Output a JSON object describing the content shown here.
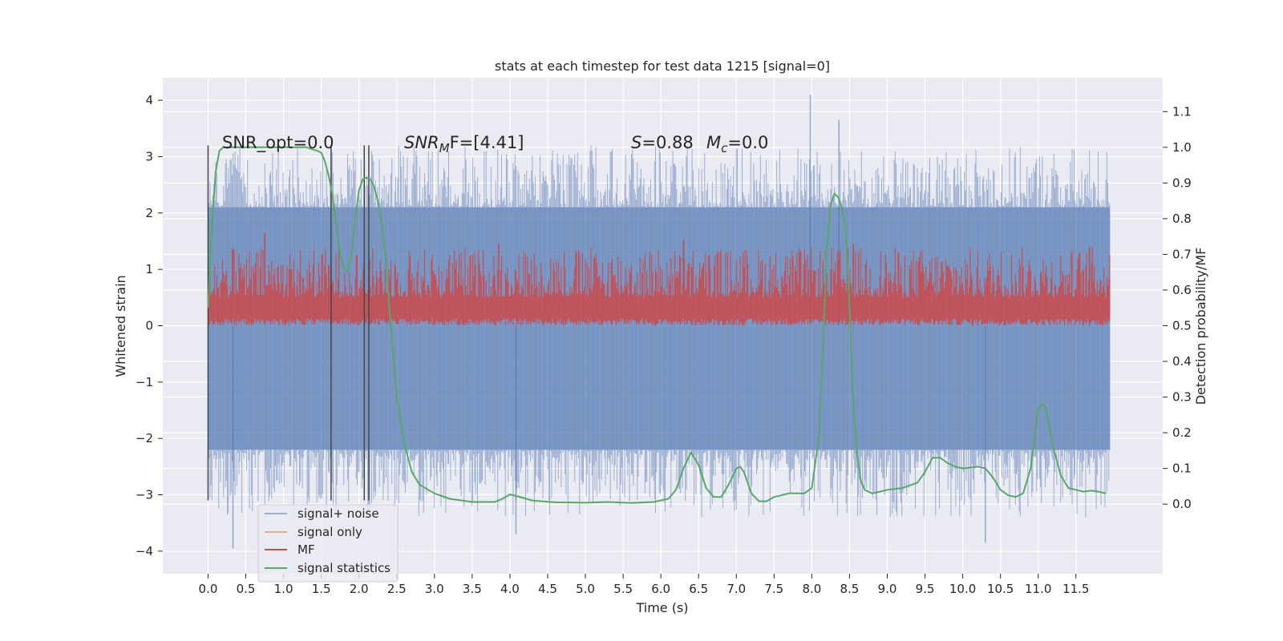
{
  "chart_data": {
    "type": "line",
    "title": "stats at each timestep for test data 1215 [signal=0]",
    "xlabel": "Time (s)",
    "ylabel": "Whitened strain",
    "y2label": "Detection probability/MF",
    "xlim": [
      -0.6,
      12.65
    ],
    "ylim": [
      -4.4,
      4.4
    ],
    "y2lim": [
      -0.195,
      1.195
    ],
    "xticks": [
      0.0,
      0.5,
      1.0,
      1.5,
      2.0,
      2.5,
      3.0,
      3.5,
      4.0,
      4.5,
      5.0,
      5.5,
      6.0,
      6.5,
      7.0,
      7.5,
      8.0,
      8.5,
      9.0,
      9.5,
      10.0,
      10.5,
      11.0,
      11.5
    ],
    "xtick_labels": [
      "0.0",
      "0.5",
      "1.0",
      "1.5",
      "2.0",
      "2.5",
      "3.0",
      "3.5",
      "4.0",
      "4.5",
      "5.0",
      "5.5",
      "6.0",
      "6.5",
      "7.0",
      "7.5",
      "8.0",
      "8.5",
      "9.0",
      "9.5",
      "10.0",
      "10.5",
      "11.0",
      "11.5"
    ],
    "yticks": [
      4,
      3,
      2,
      1,
      0,
      -1,
      -2,
      -3,
      -4
    ],
    "ytick_labels": [
      "4",
      "3",
      "2",
      "1",
      "0",
      "−1",
      "−2",
      "−3",
      "−4"
    ],
    "y2ticks": [
      1.1,
      1.0,
      0.9,
      0.8,
      0.7,
      0.6,
      0.5,
      0.4,
      0.3,
      0.2,
      0.1,
      0.0
    ],
    "y2tick_labels": [
      "1.1",
      "1.0",
      "0.9",
      "0.8",
      "0.7",
      "0.6",
      "0.5",
      "0.4",
      "0.3",
      "0.2",
      "0.1",
      "0.0"
    ],
    "grid": true,
    "legend_position": "lower-left",
    "annotations": {
      "snr_opt": "SNR_opt=0.0",
      "snr_mf_italic": "SNR",
      "snr_mf_sub": "M",
      "snr_mf_rest": "F=[4.41]",
      "s_italic": "S",
      "s_rest": "=0.88",
      "mc_italic": "M",
      "mc_sub": "c",
      "mc_rest": "=0.0"
    },
    "vlines": [
      0.0,
      1.63,
      2.07,
      2.13
    ],
    "series": [
      {
        "name": "signal+ noise",
        "color": "#4c72b0",
        "x_range": [
          0.0,
          11.95
        ],
        "envelope_pos": [
          2.1,
          3.2
        ],
        "envelope_neg": [
          -2.2,
          -3.4
        ],
        "peaks": [
          {
            "x": 7.98,
            "y": 4.1
          },
          {
            "x": 0.33,
            "y": -3.95
          },
          {
            "x": 4.08,
            "y": -3.7
          },
          {
            "x": 10.3,
            "y": -3.85
          },
          {
            "x": 8.36,
            "y": 3.65
          }
        ]
      },
      {
        "name": "signal only",
        "color": "#dd8452",
        "values": []
      },
      {
        "name": "MF",
        "color": "#c44e52",
        "x_range": [
          0.0,
          11.95
        ],
        "y2_band": [
          0.5,
          0.72
        ],
        "y2_peaks": [
          {
            "x": 0.75,
            "y": 0.76
          },
          {
            "x": 3.85,
            "y": 0.73
          },
          {
            "x": 6.3,
            "y": 0.74
          },
          {
            "x": 8.55,
            "y": 0.73
          },
          {
            "x": 11.68,
            "y": 0.72
          }
        ]
      },
      {
        "name": "signal statistics",
        "color": "#55a868",
        "x": [
          0.0,
          0.05,
          0.1,
          0.15,
          0.2,
          0.3,
          0.5,
          1.0,
          1.3,
          1.45,
          1.5,
          1.55,
          1.6,
          1.65,
          1.7,
          1.75,
          1.8,
          1.85,
          1.9,
          1.95,
          2.0,
          2.05,
          2.1,
          2.15,
          2.2,
          2.25,
          2.3,
          2.35,
          2.4,
          2.5,
          2.6,
          2.7,
          2.8,
          3.0,
          3.2,
          3.5,
          3.8,
          3.9,
          4.0,
          4.1,
          4.3,
          4.6,
          5.0,
          5.3,
          5.6,
          5.9,
          6.1,
          6.2,
          6.3,
          6.4,
          6.5,
          6.6,
          6.7,
          6.8,
          6.9,
          7.0,
          7.05,
          7.1,
          7.2,
          7.3,
          7.4,
          7.5,
          7.7,
          7.9,
          8.0,
          8.1,
          8.15,
          8.2,
          8.25,
          8.3,
          8.35,
          8.4,
          8.45,
          8.5,
          8.55,
          8.6,
          8.65,
          8.7,
          8.8,
          8.9,
          9.0,
          9.2,
          9.4,
          9.5,
          9.6,
          9.7,
          9.8,
          9.9,
          10.0,
          10.2,
          10.3,
          10.4,
          10.5,
          10.6,
          10.7,
          10.8,
          10.9,
          11.0,
          11.05,
          11.1,
          11.2,
          11.3,
          11.4,
          11.5,
          11.6,
          11.7,
          11.8,
          11.9
        ],
        "values": [
          0.55,
          0.78,
          0.93,
          0.99,
          1.0,
          1.0,
          1.0,
          1.0,
          1.0,
          0.99,
          0.985,
          0.96,
          0.92,
          0.86,
          0.78,
          0.7,
          0.66,
          0.65,
          0.7,
          0.8,
          0.88,
          0.91,
          0.915,
          0.91,
          0.89,
          0.85,
          0.79,
          0.7,
          0.56,
          0.3,
          0.17,
          0.09,
          0.055,
          0.03,
          0.015,
          0.006,
          0.006,
          0.015,
          0.027,
          0.022,
          0.01,
          0.005,
          0.004,
          0.006,
          0.003,
          0.006,
          0.015,
          0.04,
          0.1,
          0.145,
          0.11,
          0.045,
          0.02,
          0.02,
          0.055,
          0.1,
          0.105,
          0.09,
          0.03,
          0.008,
          0.008,
          0.02,
          0.03,
          0.03,
          0.045,
          0.2,
          0.45,
          0.72,
          0.84,
          0.87,
          0.86,
          0.83,
          0.77,
          0.55,
          0.28,
          0.14,
          0.065,
          0.04,
          0.03,
          0.035,
          0.04,
          0.045,
          0.06,
          0.09,
          0.13,
          0.13,
          0.115,
          0.105,
          0.1,
          0.105,
          0.1,
          0.075,
          0.04,
          0.025,
          0.02,
          0.03,
          0.1,
          0.27,
          0.28,
          0.27,
          0.16,
          0.08,
          0.045,
          0.04,
          0.035,
          0.038,
          0.035,
          0.03
        ]
      }
    ]
  }
}
